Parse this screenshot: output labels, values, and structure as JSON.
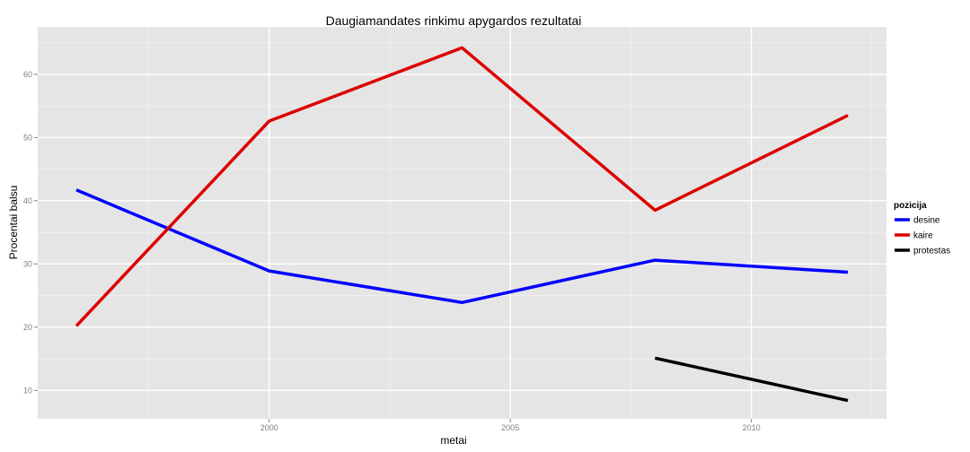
{
  "chart_data": {
    "type": "line",
    "title": "Daugiamandates rinkimu apygardos rezultatai",
    "xlabel": "metai",
    "ylabel": "Procentai balsu",
    "xlim": [
      1995.2,
      2012.8
    ],
    "ylim": [
      5.5,
      67.5
    ],
    "x_ticks": [
      2000,
      2005,
      2010
    ],
    "y_ticks": [
      10,
      20,
      30,
      40,
      50,
      60
    ],
    "grid": true,
    "legend": {
      "title": "pozicija",
      "position": "right"
    },
    "series": [
      {
        "name": "desine",
        "color": "#0000ff",
        "points": [
          [
            1996,
            41.7
          ],
          [
            2000,
            28.9
          ],
          [
            2004,
            23.9
          ],
          [
            2008,
            30.6
          ],
          [
            2012,
            28.7
          ]
        ]
      },
      {
        "name": "kaire",
        "color": "#dd0000",
        "points": [
          [
            1996,
            20.2
          ],
          [
            2000,
            52.6
          ],
          [
            2004,
            64.2
          ],
          [
            2008,
            38.5
          ],
          [
            2012,
            53.5
          ]
        ]
      },
      {
        "name": "protestas",
        "color": "#000000",
        "points": [
          [
            2008,
            15.1
          ],
          [
            2012,
            8.4
          ]
        ]
      }
    ]
  }
}
